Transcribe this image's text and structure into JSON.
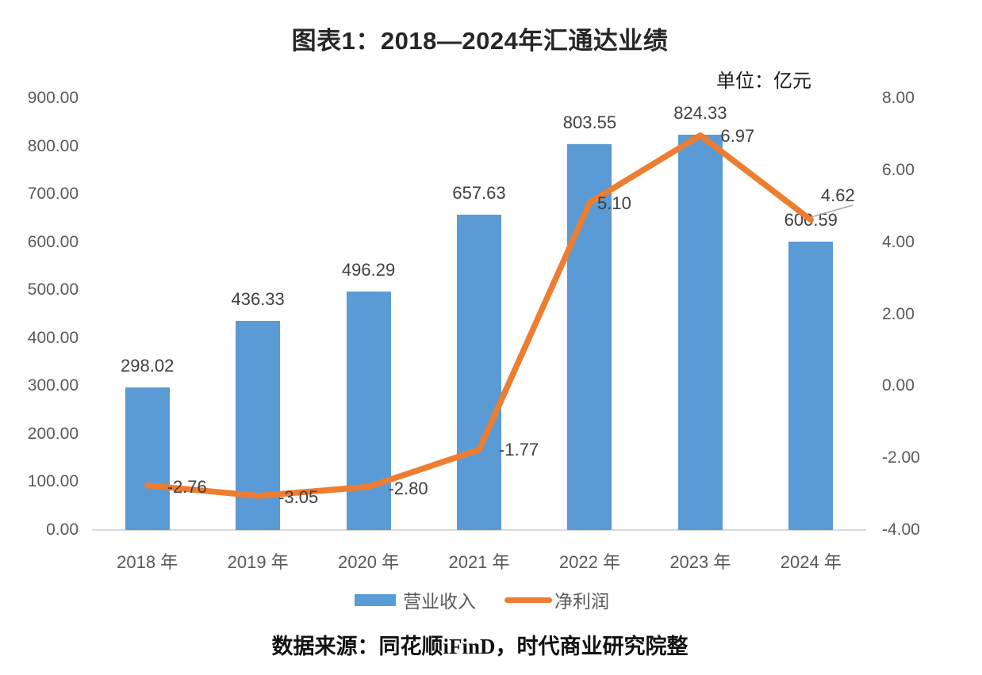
{
  "title": "图表1：2018—2024年汇通达业绩",
  "unit_note": "单位：亿元",
  "source": "数据来源：同花顺iFinD，时代商业研究院整",
  "colors": {
    "bar": "#5b9bd5",
    "line": "#ed7d31",
    "axis_line": "#d9d9d9",
    "tick_text": "#595959",
    "label_text": "#404040",
    "leader_line": "#a6a6a6"
  },
  "chart_data": {
    "type": "bar+line combo",
    "categories": [
      "2018 年",
      "2019 年",
      "2020 年",
      "2021 年",
      "2022 年",
      "2023 年",
      "2024 年"
    ],
    "series": [
      {
        "name": "营业收入",
        "type": "bar",
        "axis": "left",
        "values": [
          298.02,
          436.33,
          496.29,
          657.63,
          803.55,
          824.33,
          600.59
        ],
        "labels": [
          "298.02",
          "436.33",
          "496.29",
          "657.63",
          "803.55",
          "824.33",
          "600.59"
        ]
      },
      {
        "name": "净利润",
        "type": "line",
        "axis": "right",
        "values": [
          -2.76,
          -3.05,
          -2.8,
          -1.77,
          5.1,
          6.97,
          4.62
        ],
        "labels": [
          "-2.76",
          "-3.05",
          "-2.80",
          "-1.77",
          "5.10",
          "6.97",
          "4.62"
        ]
      }
    ],
    "left_axis": {
      "min": 0,
      "max": 900,
      "step": 100,
      "tick_labels": [
        "0.00",
        "100.00",
        "200.00",
        "300.00",
        "400.00",
        "500.00",
        "600.00",
        "700.00",
        "800.00",
        "900.00"
      ]
    },
    "right_axis": {
      "min": -4,
      "max": 8,
      "step": 2,
      "tick_labels": [
        "-4.00",
        "-2.00",
        "0.00",
        "2.00",
        "4.00",
        "6.00",
        "8.00"
      ]
    },
    "legend": [
      {
        "label": "营业收入",
        "swatch": "bar"
      },
      {
        "label": "净利润",
        "swatch": "line"
      }
    ],
    "grid": false,
    "legend_position": "bottom"
  }
}
